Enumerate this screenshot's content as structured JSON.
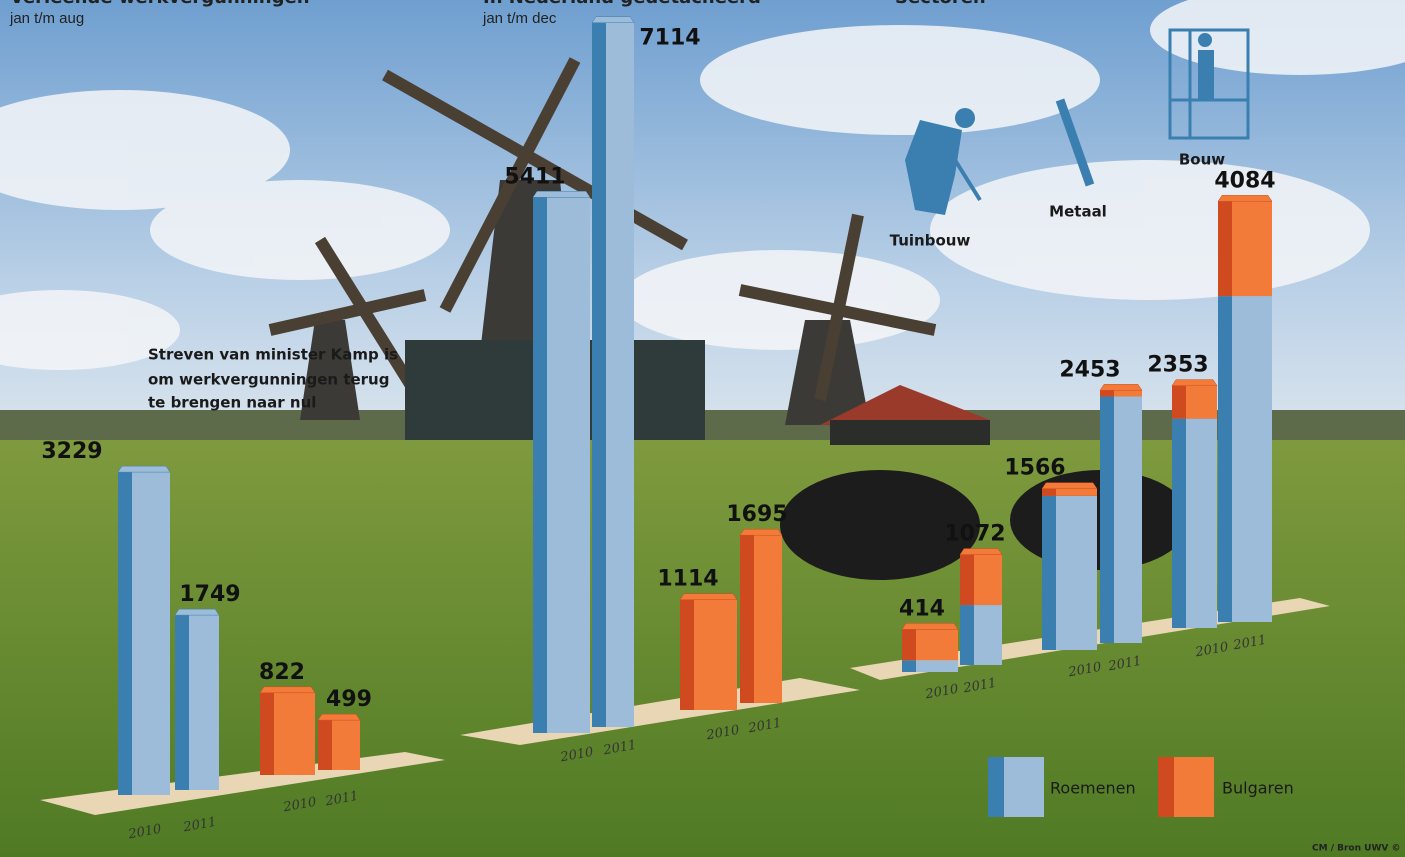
{
  "legend": {
    "series": [
      {
        "name": "Roemenen",
        "color": "#3a7fb0",
        "light_color": "#9dbcd9"
      },
      {
        "name": "Bulgaren",
        "color": "#cf4a1e",
        "light_color": "#f27b3a"
      }
    ]
  },
  "source": "CM / Bron UWV ©",
  "chart_data": [
    {
      "type": "bar",
      "title": "Verleende werkvergunningen",
      "subtitle": "jan t/m aug",
      "annotation": [
        "Streven van minister Kamp is",
        "om werkvergunningen terug",
        "te brengen naar nul"
      ],
      "categories": [
        "2010",
        "2011"
      ],
      "series": [
        {
          "values": [
            3229,
            1749
          ]
        },
        {
          "values": [
            822,
            499
          ]
        }
      ]
    },
    {
      "type": "bar",
      "title": "In Nederland gedetacheerd",
      "subtitle": "jan t/m dec",
      "categories": [
        "2010",
        "2011"
      ],
      "series": [
        {
          "values": [
            5411,
            7114
          ]
        },
        {
          "values": [
            1114,
            1695
          ]
        }
      ]
    },
    {
      "type": "stacked-bar",
      "title": "Sectoren",
      "categories": [
        "2010",
        "2011"
      ],
      "groups": [
        {
          "name": "Tuinbouw",
          "totals": [
            414,
            1072
          ],
          "series": [
            {
              "values": [
                114,
                582
              ]
            },
            {
              "values": [
                300,
                490
              ]
            }
          ]
        },
        {
          "name": "Metaal",
          "totals": [
            1566,
            2453
          ],
          "series": [
            {
              "values": [
                1496,
                2393
              ]
            },
            {
              "values": [
                70,
                60
              ]
            }
          ]
        },
        {
          "name": "Bouw",
          "totals": [
            2353,
            4084
          ],
          "series": [
            {
              "values": [
                2033,
                3164
              ]
            },
            {
              "values": [
                320,
                920
              ]
            }
          ]
        }
      ]
    }
  ]
}
